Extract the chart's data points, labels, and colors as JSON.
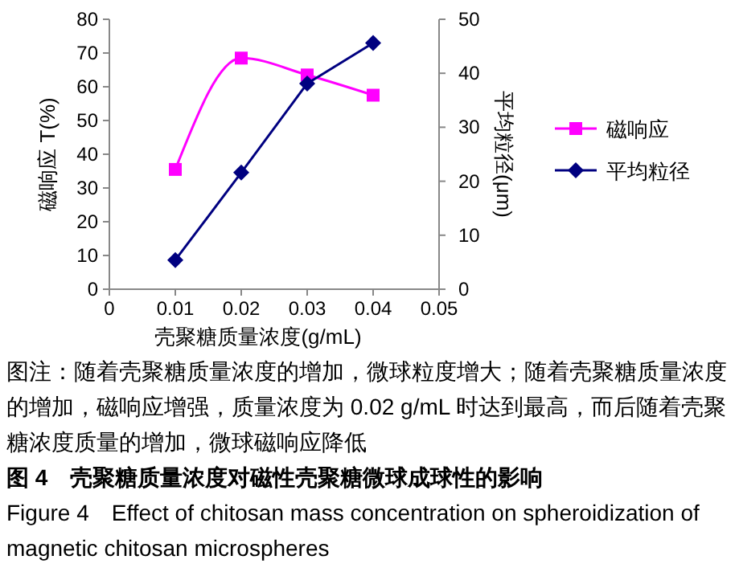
{
  "chart_data": {
    "type": "line",
    "title": "图 4　壳聚糖质量浓度对磁性壳聚糖微球成球性的影响",
    "subtitle": "Figure 4　Effect of chitosan mass concentration on spheroidization of magnetic chitosan microspheres",
    "xlabel": "壳聚糖质量浓度(g/mL)",
    "ylabel": "磁响应 T(%)",
    "y2label": "平均粒径(μm)",
    "annotations": [
      "图注：随着壳聚糖质量浓度的增加，微球粒度增大；随着壳聚糖质量浓度的增加，磁响应增强，质量浓度为 0.02 g/mL 时达到最高，而后随着壳聚糖浓度质量的增加，微球磁响应降低"
    ],
    "x": [
      0.01,
      0.02,
      0.03,
      0.04
    ],
    "series": [
      {
        "name": "磁响应",
        "color": "#ff00ff",
        "marker": "square",
        "values": [
          35.5,
          68.5,
          63.5,
          57.5
        ]
      },
      {
        "name": "平均粒径",
        "color": "#000080",
        "marker": "diamond",
        "axis": "y2",
        "values": [
          5.4,
          21.6,
          38.1,
          45.6
        ]
      }
    ],
    "xlim": [
      0,
      0.05
    ],
    "xticks": [
      0,
      0.01,
      0.02,
      0.03,
      0.04,
      0.05
    ],
    "ylim": [
      0,
      80
    ],
    "yticks": [
      0,
      10,
      20,
      30,
      40,
      50,
      60,
      70,
      80
    ],
    "y2lim": [
      0,
      50
    ],
    "y2ticks": [
      0,
      10,
      20,
      30,
      40,
      50
    ],
    "grid": false,
    "legend": "right"
  }
}
